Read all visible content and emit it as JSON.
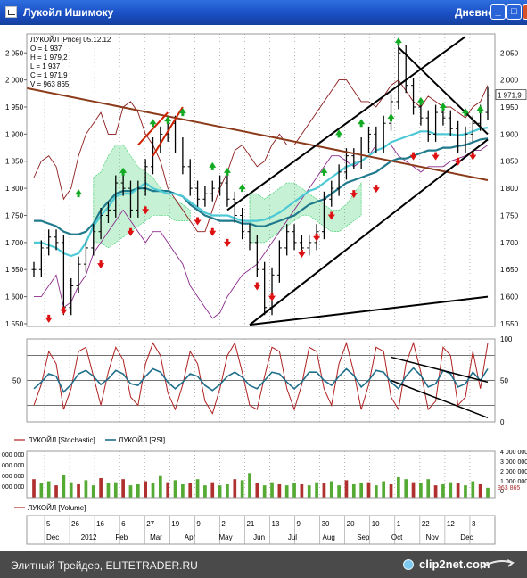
{
  "window": {
    "title": "Лукойл Ишимоку",
    "period": "Дневной",
    "buttons": {
      "minimize": "_",
      "maximize": "□",
      "close": "X"
    }
  },
  "footer": {
    "text": "Элитный Трейдер, ELITETRADER.RU",
    "brand": "clip2net.com"
  },
  "colors": {
    "price_bars": "#000000",
    "cloud": "#33cc66",
    "kijun": "#1f7a8c",
    "tenkan": "#4dc9d6",
    "envelope": "#8b1a1a",
    "signal_up": "#11aa22",
    "signal_down": "#dd1111",
    "stochastic": "#b02020",
    "rsi": "#1f6f8b",
    "volume": "#55aa33"
  },
  "chart_data": [
    {
      "type": "candlestick",
      "legend": [
        "ЛУКОЙЛ [Price] 05.12.12",
        "O = 1 937",
        "H = 1 979,2",
        "L = 1 937",
        "C = 1 971,9",
        "V = 963 865"
      ],
      "ylim": [
        1545,
        2085
      ],
      "yticks": [
        "2 050",
        "2 000",
        "1 950",
        "1 900",
        "1 850",
        "1 800",
        "1 750",
        "1 700",
        "1 650",
        "1 600",
        "1 550"
      ],
      "ytick_values": [
        2050,
        2000,
        1950,
        1900,
        1850,
        1800,
        1750,
        1700,
        1650,
        1600,
        1550
      ],
      "last_price": "1 971,9",
      "close": [
        1650,
        1690,
        1710,
        1700,
        1580,
        1620,
        1660,
        1690,
        1720,
        1750,
        1760,
        1810,
        1800,
        1760,
        1800,
        1840,
        1880,
        1900,
        1920,
        1880,
        1840,
        1800,
        1780,
        1790,
        1800,
        1810,
        1780,
        1750,
        1720,
        1700,
        1650,
        1580,
        1640,
        1690,
        1720,
        1700,
        1690,
        1700,
        1720,
        1780,
        1800,
        1830,
        1860,
        1850,
        1880,
        1900,
        1880,
        1920,
        1960,
        2050,
        1990,
        1950,
        1930,
        1900,
        1940,
        1930,
        1910,
        1880,
        1900,
        1920,
        1940,
        1972
      ],
      "kijun": [
        1740,
        1740,
        1735,
        1730,
        1720,
        1715,
        1715,
        1720,
        1735,
        1760,
        1775,
        1790,
        1795,
        1795,
        1800,
        1800,
        1795,
        1795,
        1795,
        1790,
        1785,
        1770,
        1760,
        1750,
        1745,
        1740,
        1740,
        1740,
        1735,
        1735,
        1730,
        1730,
        1735,
        1740,
        1745,
        1750,
        1760,
        1770,
        1775,
        1780,
        1790,
        1800,
        1810,
        1815,
        1820,
        1825,
        1830,
        1840,
        1850,
        1855,
        1855,
        1860,
        1865,
        1870,
        1870,
        1875,
        1875,
        1878,
        1880,
        1885,
        1890,
        1892
      ],
      "tenkan": [
        1700,
        1700,
        1695,
        1690,
        1680,
        1675,
        1680,
        1700,
        1730,
        1750,
        1765,
        1785,
        1790,
        1790,
        1800,
        1810,
        1800,
        1795,
        1790,
        1790,
        1785,
        1775,
        1765,
        1755,
        1750,
        1750,
        1750,
        1745,
        1740,
        1740,
        1740,
        1742,
        1748,
        1755,
        1765,
        1775,
        1785,
        1795,
        1800,
        1810,
        1820,
        1830,
        1840,
        1845,
        1850,
        1860,
        1870,
        1875,
        1885,
        1890,
        1895,
        1900,
        1905,
        1905,
        1900,
        1900,
        1900,
        1898,
        1900,
        1905,
        1910,
        1912
      ],
      "cloud_segments": [
        {
          "from": 8,
          "to": 21,
          "top": [
            1820,
            1830,
            1860,
            1880,
            1880,
            1860,
            1840,
            1830,
            1820,
            1800,
            1790,
            1780,
            1770,
            1760
          ],
          "bottom": [
            1700,
            1700,
            1690,
            1700,
            1710,
            1720,
            1730,
            1740,
            1750,
            1750,
            1750,
            1740,
            1740,
            1740
          ]
        },
        {
          "from": 29,
          "to": 44,
          "top": [
            1790,
            1790,
            1780,
            1790,
            1800,
            1810,
            1810,
            1800,
            1790,
            1780,
            1770,
            1760,
            1760,
            1770,
            1790,
            1810
          ],
          "bottom": [
            1700,
            1700,
            1700,
            1710,
            1720,
            1730,
            1740,
            1750,
            1750,
            1740,
            1730,
            1720,
            1720,
            1730,
            1740,
            1750
          ]
        }
      ],
      "upper_envelope": [
        1820,
        1850,
        1860,
        1840,
        1780,
        1800,
        1860,
        1900,
        1920,
        1940,
        1900,
        1900,
        1950,
        1960,
        1940,
        1900,
        1880,
        1850,
        1800,
        1780,
        1760,
        1740,
        1720,
        1720,
        1760,
        1800,
        1830,
        1870,
        1880,
        1860,
        1840,
        1850,
        1880,
        1900,
        1880,
        1880,
        1900,
        1920,
        1940,
        1960,
        1980,
        2000,
        2000,
        1980,
        1960,
        1960,
        1950,
        1970,
        1990,
        2000,
        1980,
        1960,
        1950,
        1970,
        1960,
        1950,
        1950,
        1940,
        1930,
        1950,
        1960,
        1990
      ],
      "lower_envelope": [
        1600,
        1600,
        1620,
        1640,
        1580,
        1590,
        1620,
        1640,
        1680,
        1700,
        1720,
        1740,
        1760,
        1740,
        1720,
        1700,
        1720,
        1720,
        1700,
        1680,
        1660,
        1620,
        1600,
        1580,
        1560,
        1570,
        1600,
        1620,
        1640,
        1650,
        1660,
        1680,
        1700,
        1720,
        1740,
        1760,
        1780,
        1800,
        1820,
        1840,
        1860,
        1860,
        1850,
        1840,
        1850,
        1860,
        1880,
        1880,
        1880,
        1860,
        1850,
        1840,
        1830,
        1840,
        1840,
        1840,
        1850,
        1855,
        1860,
        1870,
        1870,
        1880
      ],
      "signals_up": [
        [
          6,
          1790
        ],
        [
          12,
          1830
        ],
        [
          16,
          1920
        ],
        [
          18,
          1925
        ],
        [
          20,
          1940
        ],
        [
          24,
          1840
        ],
        [
          26,
          1830
        ],
        [
          28,
          1800
        ],
        [
          39,
          1830
        ],
        [
          41,
          1900
        ],
        [
          44,
          1920
        ],
        [
          48,
          1930
        ],
        [
          49,
          2070
        ],
        [
          52,
          1960
        ],
        [
          55,
          1950
        ],
        [
          58,
          1940
        ],
        [
          60,
          1945
        ]
      ],
      "signals_down": [
        [
          2,
          1560
        ],
        [
          4,
          1575
        ],
        [
          9,
          1660
        ],
        [
          13,
          1720
        ],
        [
          15,
          1760
        ],
        [
          22,
          1740
        ],
        [
          24,
          1720
        ],
        [
          26,
          1700
        ],
        [
          30,
          1620
        ],
        [
          32,
          1600
        ],
        [
          36,
          1680
        ],
        [
          38,
          1710
        ],
        [
          40,
          1750
        ],
        [
          43,
          1790
        ],
        [
          46,
          1800
        ],
        [
          51,
          1860
        ],
        [
          54,
          1860
        ],
        [
          57,
          1850
        ],
        [
          59,
          1860
        ]
      ]
    },
    {
      "type": "line",
      "legend": [
        "ЛУКОЙЛ [Stochastic]",
        "ЛУКОЙЛ [RSI]"
      ],
      "ylim": [
        0,
        100
      ],
      "yticks_left": [
        "50"
      ],
      "yticks_right": [
        "100",
        "50",
        "0"
      ],
      "series": [
        {
          "name": "ЛУКОЙЛ [Stochastic]",
          "values": [
            20,
            45,
            85,
            70,
            15,
            40,
            85,
            90,
            55,
            20,
            60,
            90,
            75,
            30,
            20,
            70,
            95,
            80,
            35,
            15,
            45,
            85,
            70,
            25,
            10,
            40,
            80,
            95,
            60,
            20,
            15,
            55,
            90,
            85,
            40,
            15,
            45,
            90,
            85,
            40,
            20,
            70,
            95,
            60,
            15,
            45,
            90,
            85,
            30,
            15,
            70,
            95,
            60,
            15,
            25,
            90,
            80,
            20,
            30,
            85,
            40,
            95
          ]
        },
        {
          "name": "ЛУКОЙЛ [RSI]",
          "values": [
            40,
            48,
            58,
            55,
            36,
            45,
            58,
            62,
            55,
            45,
            52,
            62,
            58,
            46,
            44,
            55,
            64,
            60,
            48,
            40,
            48,
            58,
            55,
            44,
            38,
            45,
            55,
            60,
            54,
            44,
            40,
            50,
            60,
            58,
            48,
            40,
            48,
            60,
            60,
            50,
            44,
            55,
            64,
            56,
            42,
            50,
            62,
            60,
            48,
            40,
            55,
            65,
            56,
            42,
            46,
            62,
            58,
            42,
            46,
            60,
            50,
            64
          ]
        }
      ]
    },
    {
      "type": "bar",
      "legend": [
        "ЛУКОЙЛ [Volume]"
      ],
      "yticks_left": [
        "000 000",
        "000 000",
        "000 000",
        "000 000"
      ],
      "yticks_right": [
        "4 000 000",
        "3 000 000",
        "2 000 000",
        "1 000 000",
        "0"
      ],
      "ylim": [
        0,
        4500000
      ],
      "last_volume": "963 865",
      "values": [
        1800000,
        1400000,
        1600000,
        1200000,
        2200000,
        1500000,
        1300000,
        1700000,
        1200000,
        1900000,
        1400000,
        1500000,
        1800000,
        1200000,
        1300000,
        1600000,
        1400000,
        2100000,
        1500000,
        1700000,
        1300000,
        1400000,
        1800000,
        1200000,
        1500000,
        1200000,
        1300000,
        1800000,
        1700000,
        2400000,
        1400000,
        1200000,
        1500000,
        1300000,
        1200000,
        1400000,
        1300000,
        1200000,
        1500000,
        1400000,
        1600000,
        1200000,
        1700000,
        1300000,
        1400000,
        1500000,
        1200000,
        1600000,
        1300000,
        2000000,
        1800000,
        1500000,
        1400000,
        1800000,
        1200000,
        1300000,
        1500000,
        1400000,
        1200000,
        1600000,
        1300000,
        963865
      ]
    }
  ],
  "time_axis": {
    "day_labels": [
      "5",
      "26",
      "16",
      "6",
      "27",
      "19",
      "9",
      "2",
      "21",
      "13",
      "9",
      "30",
      "20",
      "10",
      "1",
      "22",
      "12",
      "3"
    ],
    "month_labels": [
      "Dec",
      "2012",
      "Feb",
      "Mar",
      "Apr",
      "May",
      "Jun",
      "Jul",
      "Aug",
      "Sep",
      "Oct",
      "Nov",
      "Dec"
    ]
  }
}
